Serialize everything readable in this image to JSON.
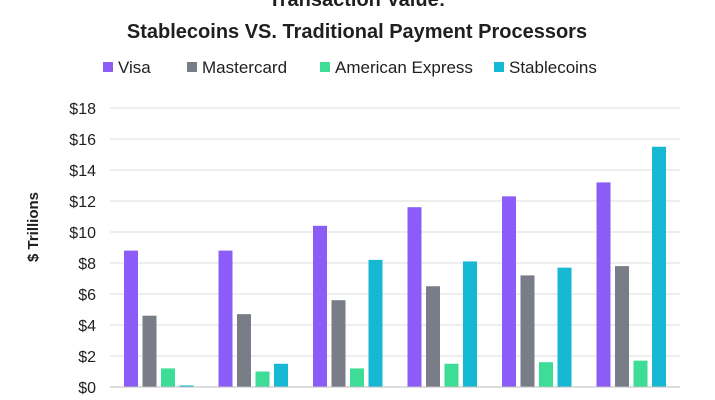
{
  "chart_data": {
    "type": "bar",
    "title_lines": [
      "Transaction Value:",
      "Stablecoins VS. Traditional Payment Processors"
    ],
    "ylabel": "$ Trillions",
    "xlabel": "",
    "ylim": [
      0,
      18
    ],
    "y_ticks": [
      "$0",
      "$2",
      "$4",
      "$6",
      "$8",
      "$10",
      "$12",
      "$14",
      "$16",
      "$18"
    ],
    "grid": true,
    "legend_position": "top",
    "categories": [
      "",
      "",
      "",
      "",
      "",
      ""
    ],
    "series": [
      {
        "name": "Visa",
        "color": "#8b5cf6",
        "values": [
          8.8,
          8.8,
          10.4,
          11.6,
          12.3,
          13.2
        ]
      },
      {
        "name": "Mastercard",
        "color": "#787d87",
        "values": [
          4.6,
          4.7,
          5.6,
          6.5,
          7.2,
          7.8
        ]
      },
      {
        "name": "American Express",
        "color": "#3ddc97",
        "values": [
          1.2,
          1.0,
          1.2,
          1.5,
          1.6,
          1.7
        ]
      },
      {
        "name": "Stablecoins",
        "color": "#16b8d4",
        "values": [
          0.1,
          1.5,
          8.2,
          8.1,
          7.7,
          15.5
        ]
      }
    ]
  }
}
